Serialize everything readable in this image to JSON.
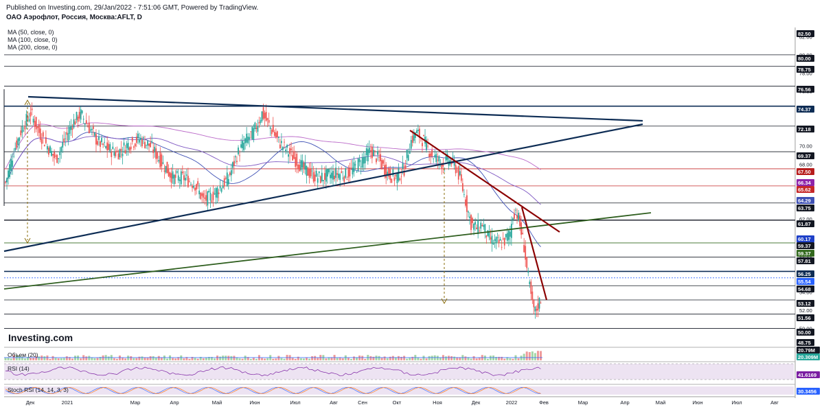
{
  "header": {
    "published": "Published on Investing.com, 29/Jan/2022 - 7:51:06 GMT, Powered by TradingView.",
    "instrument": "ОАО Аэрофлот, Россия, Москва:AFLT, D"
  },
  "ma_legend": [
    "MA (50, close, 0)",
    "MA (100, close, 0)",
    "MA (200, close, 0)"
  ],
  "watermark": "Investing.com",
  "panes": {
    "volume_label": "Объем (20)",
    "rsi_label": "RSI (14)",
    "stoch_label": "Stoch RSI (14, 14, 3, 3)"
  },
  "chart_data": {
    "type": "candlestick",
    "symbol": "AFLT",
    "interval": "D",
    "ylim": [
      48.0,
      83.0
    ],
    "x_ticks": [
      "Дек",
      "2021",
      "Мар",
      "Апр",
      "Май",
      "Июн",
      "Июл",
      "Авг",
      "Сен",
      "Окт",
      "Ноя",
      "Дек",
      "2022",
      "Фев",
      "Мар",
      "Апр",
      "Май",
      "Июн",
      "Июл",
      "Авг"
    ],
    "y_ticks": [
      "82.00",
      "80.00",
      "78.00",
      "76.00",
      "74.00",
      "72.00",
      "70.00",
      "68.00",
      "66.00",
      "64.00",
      "62.00",
      "60.00",
      "58.00",
      "56.00",
      "54.00",
      "52.00",
      "50.00"
    ],
    "price_tags": [
      {
        "value": "82.50",
        "color": "#131722"
      },
      {
        "value": "80.00",
        "color": "#131722"
      },
      {
        "value": "78.75",
        "color": "#131722"
      },
      {
        "value": "76.56",
        "color": "#131722"
      },
      {
        "value": "74.37",
        "color": "#0d2c54"
      },
      {
        "value": "72.18",
        "color": "#131722"
      },
      {
        "value": "69.37",
        "color": "#131722"
      },
      {
        "value": "67.50",
        "color": "#b71c1c"
      },
      {
        "value": "66.34",
        "color": "#8e24aa"
      },
      {
        "value": "65.62",
        "color": "#c62828"
      },
      {
        "value": "64.29",
        "color": "#3f51b5"
      },
      {
        "value": "63.75",
        "color": "#131722"
      },
      {
        "value": "61.87",
        "color": "#131722"
      },
      {
        "value": "60.17",
        "color": "#1e40c8"
      },
      {
        "value": "59.37",
        "color": "#131722"
      },
      {
        "value": "59.37",
        "color": "#33691e"
      },
      {
        "value": "57.81",
        "color": "#131722"
      },
      {
        "value": "56.25",
        "color": "#0d2c54"
      },
      {
        "value": "55.54",
        "color": "#2962ff"
      },
      {
        "value": "54.68",
        "color": "#131722"
      },
      {
        "value": "53.12",
        "color": "#131722"
      },
      {
        "value": "51.56",
        "color": "#131722"
      },
      {
        "value": "50.00",
        "color": "#131722"
      },
      {
        "value": "48.75",
        "color": "#131722"
      }
    ],
    "horizontal_levels": [
      {
        "y": 80.0,
        "color": "#131722"
      },
      {
        "y": 78.75,
        "color": "#131722"
      },
      {
        "y": 76.56,
        "color": "#131722"
      },
      {
        "y": 74.37,
        "color": "#0d2c54"
      },
      {
        "y": 72.18,
        "color": "#131722"
      },
      {
        "y": 69.37,
        "color": "#131722"
      },
      {
        "y": 67.5,
        "color": "#c62828"
      },
      {
        "y": 65.62,
        "color": "#c62828"
      },
      {
        "y": 63.75,
        "color": "#131722"
      },
      {
        "y": 61.87,
        "color": "#131722"
      },
      {
        "y": 59.37,
        "color": "#33691e"
      },
      {
        "y": 57.81,
        "color": "#131722"
      },
      {
        "y": 56.25,
        "color": "#0d2c54"
      },
      {
        "y": 55.54,
        "color": "#2962ff"
      },
      {
        "y": 54.68,
        "color": "#131722"
      },
      {
        "y": 53.12,
        "color": "#131722"
      },
      {
        "y": 51.56,
        "color": "#131722"
      },
      {
        "y": 50.0,
        "color": "#131722"
      }
    ],
    "close_series": [
      {
        "t": 0,
        "close": 66.0
      },
      {
        "t": 6,
        "close": 69.5
      },
      {
        "t": 12,
        "close": 72.0
      },
      {
        "t": 18,
        "close": 73.6
      },
      {
        "t": 24,
        "close": 71.5
      },
      {
        "t": 30,
        "close": 70.0
      },
      {
        "t": 36,
        "close": 68.5
      },
      {
        "t": 42,
        "close": 70.5
      },
      {
        "t": 48,
        "close": 72.5
      },
      {
        "t": 54,
        "close": 73.5
      },
      {
        "t": 60,
        "close": 72.0
      },
      {
        "t": 66,
        "close": 70.5
      },
      {
        "t": 72,
        "close": 69.8
      },
      {
        "t": 80,
        "close": 69.2
      },
      {
        "t": 88,
        "close": 70.2
      },
      {
        "t": 96,
        "close": 70.8
      },
      {
        "t": 104,
        "close": 70.0
      },
      {
        "t": 112,
        "close": 68.2
      },
      {
        "t": 120,
        "close": 66.5
      },
      {
        "t": 128,
        "close": 66.5
      },
      {
        "t": 136,
        "close": 65.8
      },
      {
        "t": 142,
        "close": 64.0
      },
      {
        "t": 148,
        "close": 64.5
      },
      {
        "t": 154,
        "close": 65.5
      },
      {
        "t": 160,
        "close": 66.5
      },
      {
        "t": 166,
        "close": 69.0
      },
      {
        "t": 172,
        "close": 70.5
      },
      {
        "t": 178,
        "close": 71.5
      },
      {
        "t": 184,
        "close": 73.6
      },
      {
        "t": 190,
        "close": 72.0
      },
      {
        "t": 196,
        "close": 70.5
      },
      {
        "t": 202,
        "close": 69.5
      },
      {
        "t": 208,
        "close": 68.5
      },
      {
        "t": 214,
        "close": 67.5
      },
      {
        "t": 220,
        "close": 66.8
      },
      {
        "t": 226,
        "close": 66.5
      },
      {
        "t": 232,
        "close": 66.8
      },
      {
        "t": 238,
        "close": 67.0
      },
      {
        "t": 244,
        "close": 66.8
      },
      {
        "t": 250,
        "close": 67.5
      },
      {
        "t": 256,
        "close": 68.5
      },
      {
        "t": 262,
        "close": 69.5
      },
      {
        "t": 268,
        "close": 68.5
      },
      {
        "t": 274,
        "close": 67.0
      },
      {
        "t": 280,
        "close": 66.5
      },
      {
        "t": 286,
        "close": 67.5
      },
      {
        "t": 290,
        "close": 70.2
      },
      {
        "t": 294,
        "close": 71.5
      },
      {
        "t": 298,
        "close": 71.0
      },
      {
        "t": 302,
        "close": 70.0
      },
      {
        "t": 306,
        "close": 69.0
      },
      {
        "t": 310,
        "close": 68.5
      },
      {
        "t": 314,
        "close": 68.0
      },
      {
        "t": 318,
        "close": 68.5
      },
      {
        "t": 322,
        "close": 68.0
      },
      {
        "t": 326,
        "close": 66.5
      },
      {
        "t": 330,
        "close": 64.0
      },
      {
        "t": 334,
        "close": 61.5
      },
      {
        "t": 338,
        "close": 61.0
      },
      {
        "t": 342,
        "close": 61.5
      },
      {
        "t": 346,
        "close": 60.0
      },
      {
        "t": 350,
        "close": 59.5
      },
      {
        "t": 354,
        "close": 59.3
      },
      {
        "t": 358,
        "close": 59.6
      },
      {
        "t": 362,
        "close": 60.5
      },
      {
        "t": 364,
        "close": 62.5
      },
      {
        "t": 366,
        "close": 63.0
      },
      {
        "t": 368,
        "close": 62.0
      },
      {
        "t": 370,
        "close": 60.5
      },
      {
        "t": 372,
        "close": 59.0
      },
      {
        "t": 374,
        "close": 56.5
      },
      {
        "t": 376,
        "close": 54.5
      },
      {
        "t": 378,
        "close": 52.5
      },
      {
        "t": 380,
        "close": 51.8
      },
      {
        "t": 382,
        "close": 52.5
      },
      {
        "t": 384,
        "close": 53.3
      }
    ],
    "rsi_latest": "41.6169",
    "stoch_rsi_latest": "30.3456",
    "volume_latest": "20.309M",
    "volume_max": "20.79M"
  }
}
